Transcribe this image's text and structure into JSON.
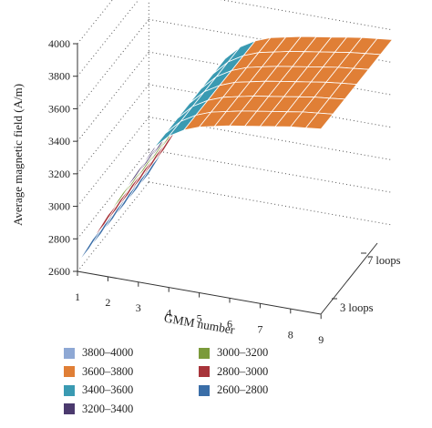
{
  "chart_data": {
    "type": "surface",
    "ylabel": "Average magnetic field (A/m)",
    "xlabel": "GMM number",
    "x_ticks": [
      "1",
      "2",
      "3",
      "4",
      "5",
      "6",
      "7",
      "8",
      "9"
    ],
    "y_ticks": [
      "2600",
      "2800",
      "3000",
      "3200",
      "3400",
      "3600",
      "3800",
      "4000"
    ],
    "depth_ticks": [
      "3 loops",
      "7 loops"
    ],
    "zlim": [
      2600,
      4000
    ],
    "grid": true,
    "profile": {
      "x": [
        1,
        2,
        3,
        3.5,
        4,
        4.3,
        5,
        6,
        7,
        8,
        9
      ],
      "z": [
        2650,
        2980,
        3290,
        3440,
        3530,
        3570,
        3620,
        3660,
        3690,
        3720,
        3740
      ]
    },
    "legend": [
      {
        "label": "3800–4000",
        "color": "#8ea8d4"
      },
      {
        "label": "3600–3800",
        "color": "#e07f36"
      },
      {
        "label": "3400–3600",
        "color": "#3a9ab2"
      },
      {
        "label": "3200–3400",
        "color": "#4b3a6e"
      },
      {
        "label": "3000–3200",
        "color": "#7b9a3a"
      },
      {
        "label": "2800–3000",
        "color": "#a8343a"
      },
      {
        "label": "2600–2800",
        "color": "#3a6ea8"
      }
    ]
  }
}
